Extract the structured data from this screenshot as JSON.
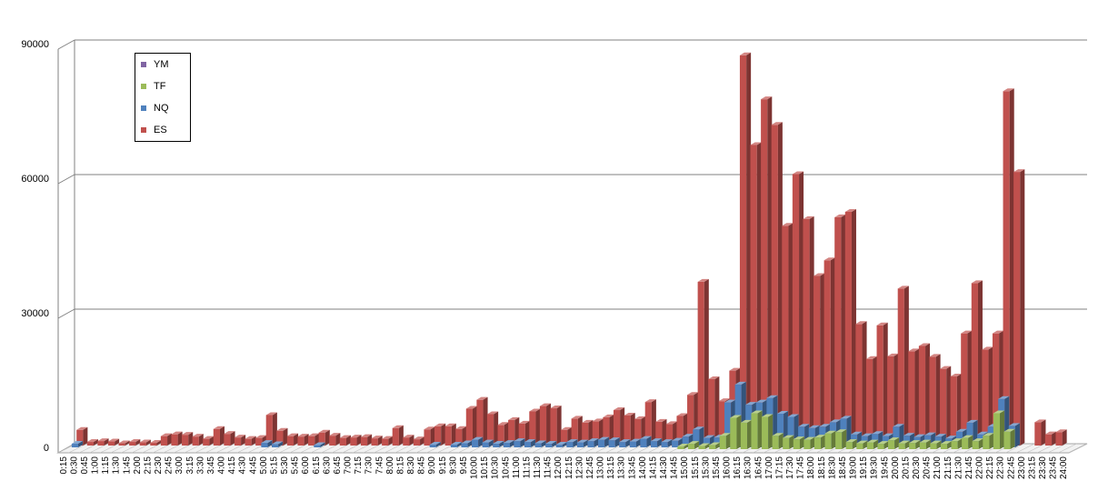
{
  "chart_data": {
    "type": "bar",
    "style": "3d-clustered-column",
    "grid": true,
    "legend_position": "top-left",
    "ylim": [
      0,
      90000
    ],
    "yticks": [
      0,
      30000,
      60000,
      90000
    ],
    "categories": [
      "0:15",
      "0:30",
      "0:45",
      "1:00",
      "1:15",
      "1:30",
      "1:45",
      "2:00",
      "2:15",
      "2:30",
      "2:45",
      "3:00",
      "3:15",
      "3:30",
      "3:45",
      "4:00",
      "4:15",
      "4:30",
      "4:45",
      "5:00",
      "5:15",
      "5:30",
      "5:45",
      "6:00",
      "6:15",
      "6:30",
      "6:45",
      "7:00",
      "7:15",
      "7:30",
      "7:45",
      "8:00",
      "8:15",
      "8:30",
      "8:45",
      "9:00",
      "9:15",
      "9:30",
      "9:45",
      "10:00",
      "10:15",
      "10:30",
      "10:45",
      "11:00",
      "11:15",
      "11:30",
      "11:45",
      "12:00",
      "12:15",
      "12:30",
      "12:45",
      "13:00",
      "13:15",
      "13:30",
      "13:45",
      "14:00",
      "14:15",
      "14:30",
      "14:45",
      "15:00",
      "15:15",
      "15:30",
      "15:45",
      "16:00",
      "16:15",
      "16:30",
      "16:45",
      "17:00",
      "17:15",
      "17:30",
      "17:45",
      "18:00",
      "18:15",
      "18:30",
      "18:45",
      "19:00",
      "19:15",
      "19:30",
      "19:45",
      "20:00",
      "20:15",
      "20:30",
      "20:45",
      "21:00",
      "21:15",
      "21:30",
      "21:45",
      "22:00",
      "22:15",
      "22:30",
      "22:45",
      "23:00",
      "23:15",
      "23:30",
      "23:45",
      "24:00"
    ],
    "series": [
      {
        "name": "ES",
        "color": "#c0504d",
        "values": [
          3500,
          800,
          1000,
          900,
          500,
          800,
          700,
          600,
          2100,
          2500,
          2400,
          2000,
          1500,
          3700,
          2600,
          1800,
          1500,
          1700,
          6800,
          3300,
          2100,
          2000,
          2100,
          2900,
          2200,
          1700,
          1800,
          1900,
          1600,
          1500,
          3900,
          1800,
          1400,
          3600,
          4300,
          4300,
          3700,
          8200,
          10200,
          7000,
          4600,
          5700,
          4900,
          7600,
          8800,
          8300,
          3500,
          6000,
          5100,
          5400,
          6300,
          7900,
          6700,
          5900,
          9700,
          5300,
          4800,
          6600,
          11300,
          36500,
          14800,
          9900,
          16700,
          87000,
          67000,
          77200,
          71500,
          49000,
          60500,
          50500,
          37800,
          41300,
          50900,
          52100,
          27100,
          19300,
          26800,
          19900,
          35000,
          21000,
          22200,
          19800,
          17100,
          15400,
          25000,
          36200,
          21400,
          25000,
          79000,
          61000,
          0,
          5200,
          2500,
          3000,
          0,
          0
        ]
      },
      {
        "name": "NQ",
        "color": "#4f81bd",
        "values": [
          800,
          0,
          0,
          0,
          0,
          0,
          0,
          0,
          0,
          0,
          0,
          0,
          0,
          0,
          0,
          0,
          0,
          0,
          1000,
          700,
          0,
          0,
          0,
          500,
          0,
          0,
          0,
          0,
          0,
          0,
          0,
          0,
          0,
          0,
          600,
          0,
          600,
          900,
          1700,
          1100,
          800,
          1000,
          1400,
          1200,
          900,
          800,
          600,
          1200,
          1100,
          1400,
          1700,
          1600,
          1200,
          1300,
          1900,
          1400,
          1200,
          1500,
          2400,
          4000,
          2100,
          2200,
          10000,
          14000,
          9500,
          10000,
          11000,
          7500,
          6800,
          4600,
          4300,
          4600,
          5600,
          6400,
          2900,
          2500,
          3000,
          2500,
          4600,
          2600,
          2300,
          2700,
          2400,
          2000,
          3500,
          5500,
          2900,
          4600,
          10800,
          4800,
          0,
          0,
          0,
          0,
          0,
          0
        ]
      },
      {
        "name": "TF",
        "color": "#9bbb59",
        "values": [
          0,
          0,
          0,
          0,
          0,
          0,
          0,
          0,
          0,
          0,
          0,
          0,
          0,
          0,
          0,
          0,
          0,
          0,
          0,
          0,
          0,
          0,
          0,
          0,
          0,
          0,
          0,
          0,
          0,
          0,
          0,
          0,
          0,
          0,
          0,
          0,
          0,
          0,
          0,
          0,
          0,
          0,
          0,
          0,
          0,
          0,
          0,
          0,
          0,
          0,
          0,
          0,
          0,
          0,
          0,
          0,
          0,
          0,
          600,
          1200,
          700,
          900,
          3000,
          7000,
          5900,
          8000,
          7200,
          3000,
          2500,
          2200,
          2100,
          2600,
          3500,
          3800,
          1600,
          1300,
          1500,
          1200,
          2000,
          1300,
          1400,
          1500,
          1300,
          1200,
          1800,
          2500,
          1800,
          3000,
          8000,
          3900,
          0,
          0,
          0,
          0,
          0,
          0
        ]
      },
      {
        "name": "YM",
        "color": "#8064a2",
        "values": [
          0,
          0,
          0,
          0,
          0,
          0,
          0,
          0,
          0,
          0,
          0,
          0,
          0,
          0,
          0,
          0,
          0,
          0,
          0,
          0,
          0,
          0,
          0,
          0,
          0,
          0,
          0,
          0,
          0,
          0,
          0,
          0,
          0,
          0,
          0,
          0,
          0,
          0,
          0,
          0,
          0,
          0,
          0,
          0,
          0,
          0,
          0,
          0,
          0,
          0,
          0,
          0,
          0,
          0,
          0,
          0,
          0,
          0,
          0,
          0,
          0,
          0,
          0,
          0,
          0,
          0,
          0,
          0,
          0,
          0,
          0,
          0,
          0,
          0,
          0,
          0,
          0,
          0,
          0,
          0,
          0,
          0,
          0,
          0,
          0,
          0,
          0,
          0,
          0,
          0,
          0,
          0,
          0,
          0,
          0,
          0
        ]
      }
    ],
    "legend": [
      "YM",
      "TF",
      "NQ",
      "ES"
    ]
  }
}
